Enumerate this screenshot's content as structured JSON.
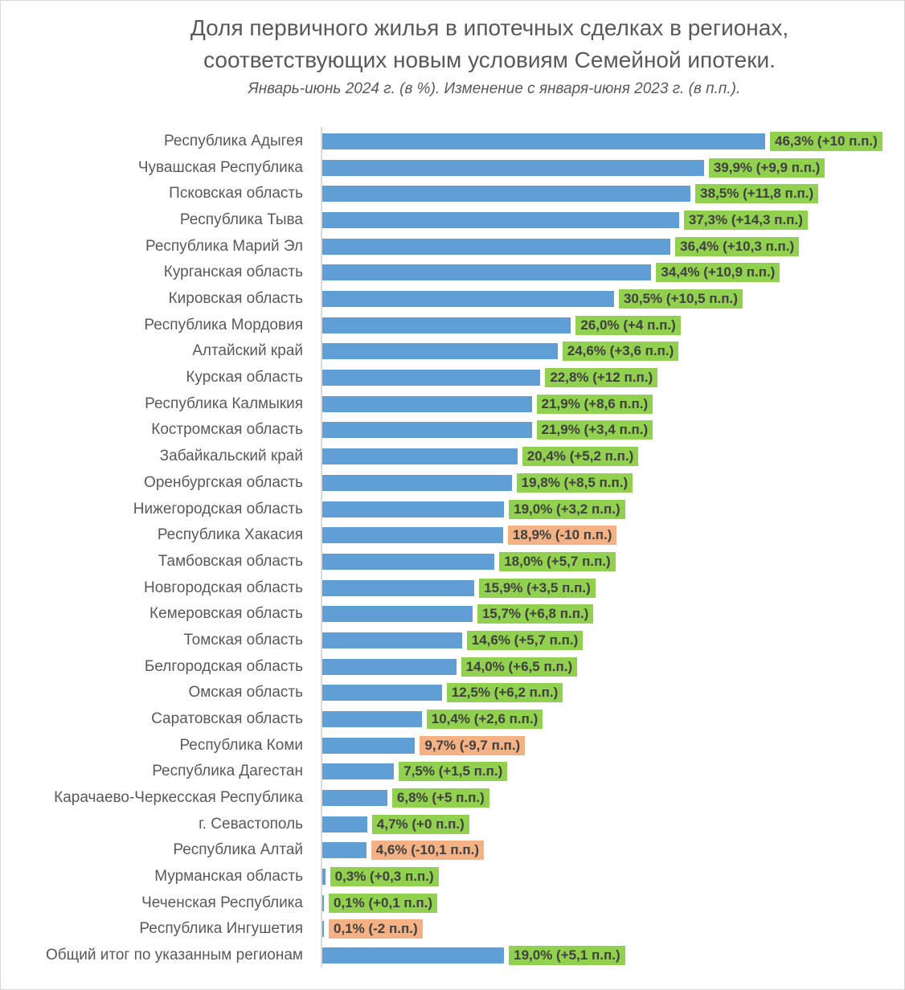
{
  "chart_data": {
    "type": "bar",
    "orientation": "horizontal",
    "title": "Доля первичного жилья в ипотечных сделках в регионах, соответствующих новым условиям Семейной ипотеки.",
    "title_lines": [
      "Доля первичного жилья в ипотечных сделках в регионах,",
      "соответствующих новым условиям Семейной ипотеки."
    ],
    "subtitle": "Январь-июнь 2024 г. (в %). Изменение с января-июня 2023 г. (в п.п.).",
    "xlim": [
      0,
      50
    ],
    "colors": {
      "bar": "#5f9fd6",
      "positive": "#92d050",
      "negative": "#f4b183"
    },
    "categories": [
      "Республика Адыгея",
      "Чувашская Республика",
      "Псковская область",
      "Республика Тыва",
      "Республика Марий Эл",
      "Курганская область",
      "Кировская область",
      "Республика Мордовия",
      "Алтайский край",
      "Курская область",
      "Республика Калмыкия",
      "Костромская область",
      "Забайкальский край",
      "Оренбургская область",
      "Нижегородская область",
      "Республика Хакасия",
      "Тамбовская область",
      "Новгородская область",
      "Кемеровская область",
      "Томская область",
      "Белгородская область",
      "Омская область",
      "Саратовская область",
      "Республика Коми",
      "Республика Дагестан",
      "Карачаево-Черкесская Республика",
      "г. Севастополь",
      "Республика Алтай",
      "Мурманская область",
      "Чеченская Республика",
      "Республика Ингушетия",
      "Общий итог по указанным регионам"
    ],
    "values": [
      46.3,
      39.9,
      38.5,
      37.3,
      36.4,
      34.4,
      30.5,
      26.0,
      24.6,
      22.8,
      21.9,
      21.9,
      20.4,
      19.8,
      19.0,
      18.9,
      18.0,
      15.9,
      15.7,
      14.6,
      14.0,
      12.5,
      10.4,
      9.7,
      7.5,
      6.8,
      4.7,
      4.6,
      0.3,
      0.1,
      0.1,
      19.0
    ],
    "changes": [
      10,
      9.9,
      11.8,
      14.3,
      10.3,
      10.9,
      10.5,
      4,
      3.6,
      12,
      8.6,
      3.4,
      5.2,
      8.5,
      3.2,
      -10,
      5.7,
      3.5,
      6.8,
      5.7,
      6.5,
      6.2,
      2.6,
      -9.7,
      1.5,
      5,
      0,
      -10.1,
      0.3,
      0.1,
      -2,
      5.1
    ],
    "data_labels": [
      "46,3% (+10 п.п.)",
      "39,9% (+9,9 п.п.)",
      "38,5% (+11,8 п.п.)",
      "37,3% (+14,3 п.п.)",
      "36,4% (+10,3 п.п.)",
      "34,4% (+10,9 п.п.)",
      "30,5% (+10,5 п.п.)",
      "26,0% (+4 п.п.)",
      "24,6% (+3,6 п.п.)",
      "22,8% (+12 п.п.)",
      "21,9% (+8,6 п.п.)",
      "21,9% (+3,4 п.п.)",
      "20,4% (+5,2 п.п.)",
      "19,8% (+8,5 п.п.)",
      "19,0% (+3,2 п.п.)",
      "18,9% (-10 п.п.)",
      "18,0% (+5,7 п.п.)",
      "15,9% (+3,5 п.п.)",
      "15,7% (+6,8 п.п.)",
      "14,6% (+5,7 п.п.)",
      "14,0% (+6,5 п.п.)",
      "12,5% (+6,2 п.п.)",
      "10,4% (+2,6 п.п.)",
      "9,7% (-9,7 п.п.)",
      "7,5% (+1,5 п.п.)",
      "6,8% (+5 п.п.)",
      "4,7% (+0 п.п.)",
      "4,6% (-10,1 п.п.)",
      "0,3% (+0,3 п.п.)",
      "0,1% (+0,1 п.п.)",
      "0,1% (-2 п.п.)",
      "19,0% (+5,1 п.п.)"
    ],
    "xlabel": "",
    "ylabel": "",
    "grid": false,
    "legend": "none"
  }
}
